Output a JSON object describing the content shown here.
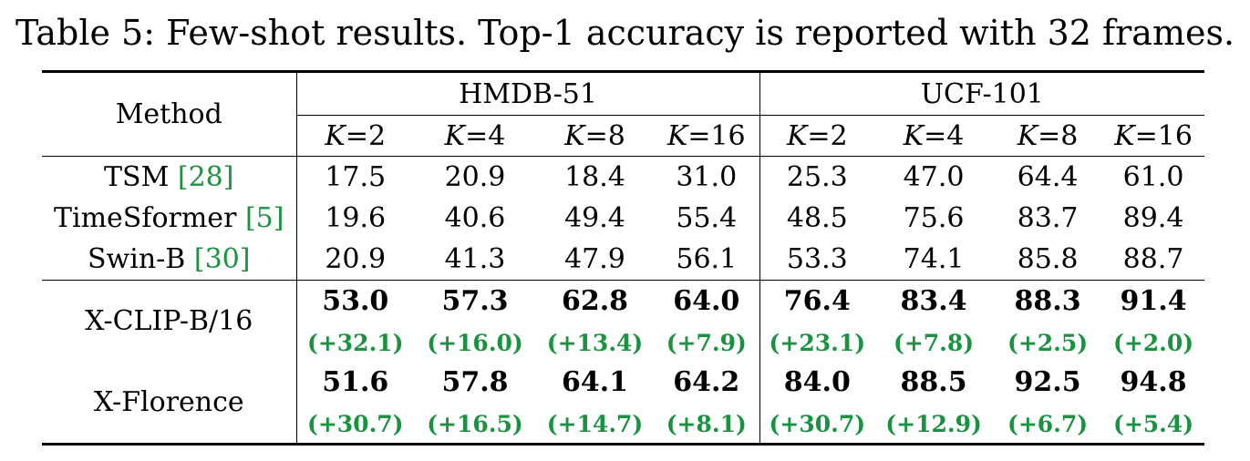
{
  "caption": "Table 5: Few-shot results. Top-1 accuracy is reported with 32 frames.",
  "header": {
    "method": "Method",
    "groups": [
      "HMDB-51",
      "UCF-101"
    ],
    "k_values": [
      "2",
      "4",
      "8",
      "16",
      "2",
      "4",
      "8",
      "16"
    ],
    "k_symbol": "K"
  },
  "baselines": [
    {
      "name": "TSM ",
      "cite": "28",
      "values": [
        "17.5",
        "20.9",
        "18.4",
        "31.0",
        "25.3",
        "47.0",
        "64.4",
        "61.0"
      ]
    },
    {
      "name": "TimeSformer ",
      "cite": "5",
      "values": [
        "19.6",
        "40.6",
        "49.4",
        "55.4",
        "48.5",
        "75.6",
        "83.7",
        "89.4"
      ]
    },
    {
      "name": "Swin-B ",
      "cite": "30",
      "values": [
        "20.9",
        "41.3",
        "47.9",
        "56.1",
        "53.3",
        "74.1",
        "85.8",
        "88.7"
      ]
    }
  ],
  "ours": [
    {
      "name": "X-CLIP-B/16",
      "values": [
        "53.0",
        "57.3",
        "62.8",
        "64.0",
        "76.4",
        "83.4",
        "88.3",
        "91.4"
      ],
      "deltas": [
        "(+32.1)",
        "(+16.0)",
        "(+13.4)",
        "(+7.9)",
        "(+23.1)",
        "(+7.8)",
        "(+2.5)",
        "(+2.0)"
      ]
    },
    {
      "name": "X-Florence",
      "values": [
        "51.6",
        "57.8",
        "64.1",
        "64.2",
        "84.0",
        "88.5",
        "92.5",
        "94.8"
      ],
      "deltas": [
        "(+30.7)",
        "(+16.5)",
        "(+14.7)",
        "(+8.1)",
        "(+30.7)",
        "(+12.9)",
        "(+6.7)",
        "(+5.4)"
      ]
    }
  ],
  "colors": {
    "delta": "#1a9341",
    "cite": "#1a9341"
  }
}
